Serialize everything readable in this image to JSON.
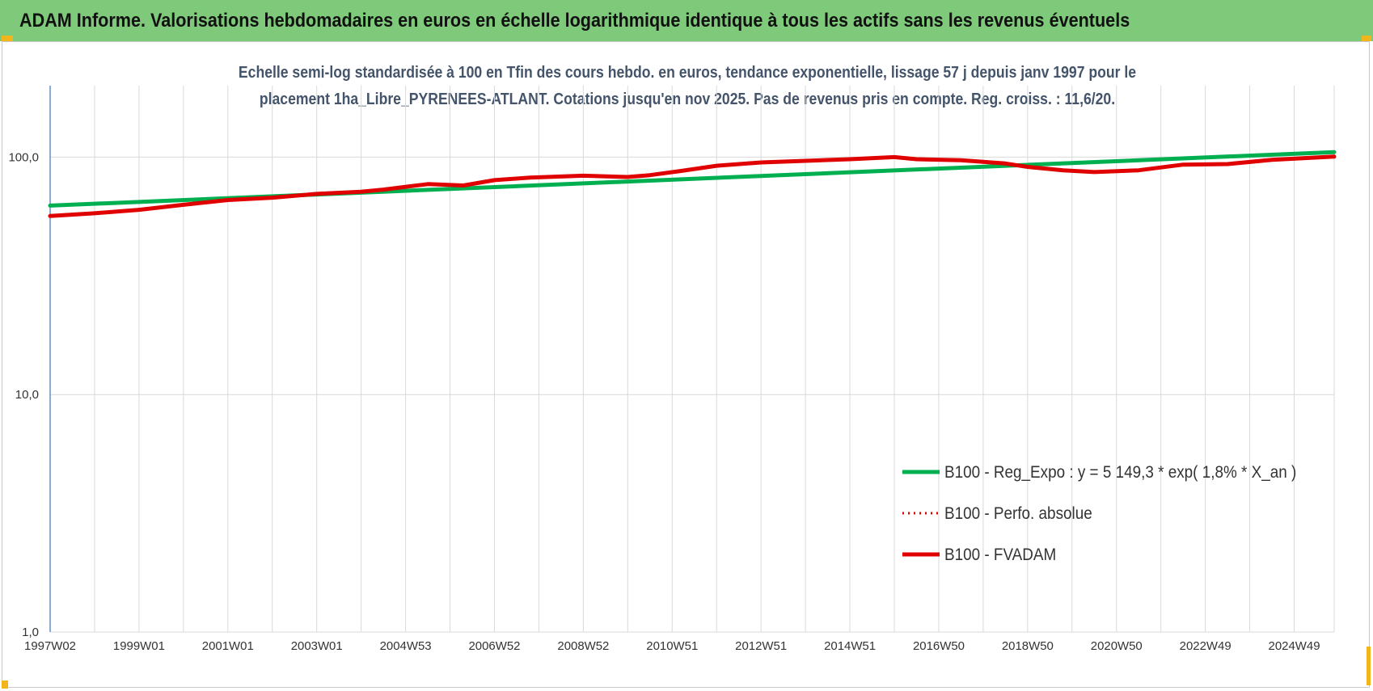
{
  "header": {
    "title": "ADAM Informe. Valorisations hebdomadaires en euros en échelle logarithmique identique à tous les actifs sans les revenus éventuels"
  },
  "colors": {
    "banner": "#7fc97a",
    "trend": "#00b050",
    "perf": "#e00000",
    "fvadam": "#e00000",
    "axis": "#4a7fc1",
    "grid": "#d9d9d9"
  },
  "chart_data": {
    "type": "line",
    "title_lines": [
      "Echelle semi-log standardisée à 100 en Tfin des cours hebdo. en euros, tendance exponentielle, lissage 57 j depuis janv 1997 pour le",
      "placement 1ha_Libre_PYRENEES-ATLANT. Cotations jusqu'en nov 2025. Pas de revenus pris en compte. Reg. croiss. : 11,6/20."
    ],
    "y_scale": "log",
    "ylim": [
      1,
      200
    ],
    "y_ticks": [
      {
        "value": 1,
        "label": "1,0"
      },
      {
        "value": 10,
        "label": "10,0"
      },
      {
        "value": 100,
        "label": "100,0"
      }
    ],
    "x_range": [
      1997.0,
      2025.9
    ],
    "x_ticks": [
      {
        "value": 1997.0,
        "label": "1997W02"
      },
      {
        "value": 1999.0,
        "label": "1999W01"
      },
      {
        "value": 2001.0,
        "label": "2001W01"
      },
      {
        "value": 2003.0,
        "label": "2003W01"
      },
      {
        "value": 2005.0,
        "label": "2004W53"
      },
      {
        "value": 2007.0,
        "label": "2006W52"
      },
      {
        "value": 2009.0,
        "label": "2008W52"
      },
      {
        "value": 2011.0,
        "label": "2010W51"
      },
      {
        "value": 2013.0,
        "label": "2012W51"
      },
      {
        "value": 2015.0,
        "label": "2014W51"
      },
      {
        "value": 2017.0,
        "label": "2016W50"
      },
      {
        "value": 2019.0,
        "label": "2018W50"
      },
      {
        "value": 2021.0,
        "label": "2020W50"
      },
      {
        "value": 2023.0,
        "label": "2022W49"
      },
      {
        "value": 2025.0,
        "label": "2024W49"
      }
    ],
    "legend_position": "bottom-right",
    "grid": "vertical",
    "series": [
      {
        "name": "B100 - Reg_Expo : y = 5 149,3 * exp( 1,8% *  X_an )",
        "color": "#00b050",
        "style": "solid",
        "x": [
          1997.0,
          2025.9
        ],
        "y": [
          62.5,
          105
        ]
      },
      {
        "name": "B100 - Perfo. absolue",
        "color": "#e00000",
        "style": "dotted",
        "x": [],
        "y": []
      },
      {
        "name": "B100 - FVADAM",
        "color": "#e00000",
        "style": "solid",
        "x": [
          1997.0,
          1998.0,
          1999.0,
          2000.0,
          2001.0,
          2002.0,
          2003.0,
          2004.0,
          2004.5,
          2005.5,
          2006.3,
          2007.0,
          2007.8,
          2009.0,
          2010.0,
          2010.5,
          2011.2,
          2012.0,
          2013.0,
          2014.0,
          2015.0,
          2016.0,
          2016.5,
          2017.5,
          2018.5,
          2019.0,
          2019.8,
          2020.5,
          2021.5,
          2022.5,
          2023.5,
          2024.5,
          2025.9
        ],
        "y": [
          56.5,
          58,
          60,
          63,
          66,
          67.5,
          70,
          71.5,
          73,
          77,
          76,
          80,
          82,
          83.5,
          82.5,
          84,
          87.5,
          92,
          95,
          96.5,
          98,
          100,
          98,
          97,
          94,
          91,
          88,
          86.5,
          88,
          93,
          93.5,
          97.5,
          100.5
        ]
      }
    ]
  }
}
